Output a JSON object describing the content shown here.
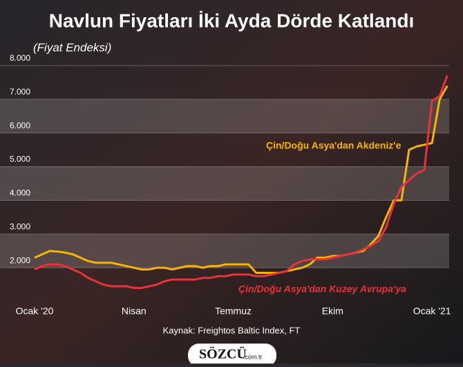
{
  "chart_data": {
    "type": "line",
    "title": "Navlun Fiyatları İki Ayda Dörde Katlandı",
    "subtitle": "(Fiyat Endeksi)",
    "source": "Kaynak: Freightos Baltic Index, FT",
    "logo": "SÖZCÜ",
    "logo_domain": ".com.tr",
    "categories": [
      "Ocak '20",
      null,
      null,
      null,
      null,
      null,
      null,
      null,
      null,
      null,
      null,
      null,
      null,
      "Nisan",
      null,
      null,
      null,
      null,
      null,
      null,
      null,
      null,
      null,
      null,
      null,
      null,
      "Temmuz",
      null,
      null,
      null,
      null,
      null,
      null,
      null,
      null,
      null,
      null,
      null,
      null,
      "Ekim",
      null,
      null,
      null,
      null,
      null,
      null,
      null,
      null,
      null,
      null,
      null,
      null,
      "Ocak '21",
      null,
      null
    ],
    "series": [
      {
        "name": "Çin/Doğu Asya'dan Akdeniz'e",
        "color": "#f7b500",
        "values": [
          2300,
          2400,
          2500,
          2480,
          2450,
          2400,
          2300,
          2200,
          2150,
          2150,
          2150,
          2100,
          2050,
          2000,
          1950,
          1950,
          2000,
          2000,
          1950,
          2000,
          2050,
          2050,
          2000,
          2050,
          2050,
          2100,
          2100,
          2100,
          2100,
          1850,
          1850,
          1850,
          1850,
          1900,
          1950,
          2000,
          2100,
          2300,
          2300,
          2350,
          2350,
          2400,
          2450,
          2500,
          2700,
          2950,
          3500,
          4000,
          4000,
          5500,
          5600,
          5650,
          5700,
          7000,
          7400
        ]
      },
      {
        "name": "Çin/Doğu Asya'dan Kuzey Avrupa'ya",
        "color": "#e8333a",
        "values": [
          1950,
          2050,
          2100,
          2100,
          2050,
          1950,
          1850,
          1700,
          1600,
          1500,
          1450,
          1450,
          1450,
          1400,
          1400,
          1450,
          1500,
          1600,
          1650,
          1650,
          1650,
          1650,
          1700,
          1700,
          1750,
          1750,
          1800,
          1800,
          1800,
          1750,
          1750,
          1800,
          1850,
          1900,
          2100,
          2200,
          2250,
          2250,
          2250,
          2300,
          2350,
          2400,
          2450,
          2550,
          2650,
          2800,
          3200,
          3900,
          4400,
          4600,
          4800,
          4900,
          6950,
          7100,
          7700
        ]
      }
    ],
    "ylim": [
      1000,
      8000
    ],
    "yticks": [
      {
        "value": 2000,
        "label": "2.000"
      },
      {
        "value": 3000,
        "label": "3.000"
      },
      {
        "value": 4000,
        "label": "4.000"
      },
      {
        "value": 5000,
        "label": "5.000"
      },
      {
        "value": 6000,
        "label": "6.000"
      },
      {
        "value": 7000,
        "label": "7.000"
      },
      {
        "value": 8000,
        "label": "8.000"
      }
    ]
  }
}
